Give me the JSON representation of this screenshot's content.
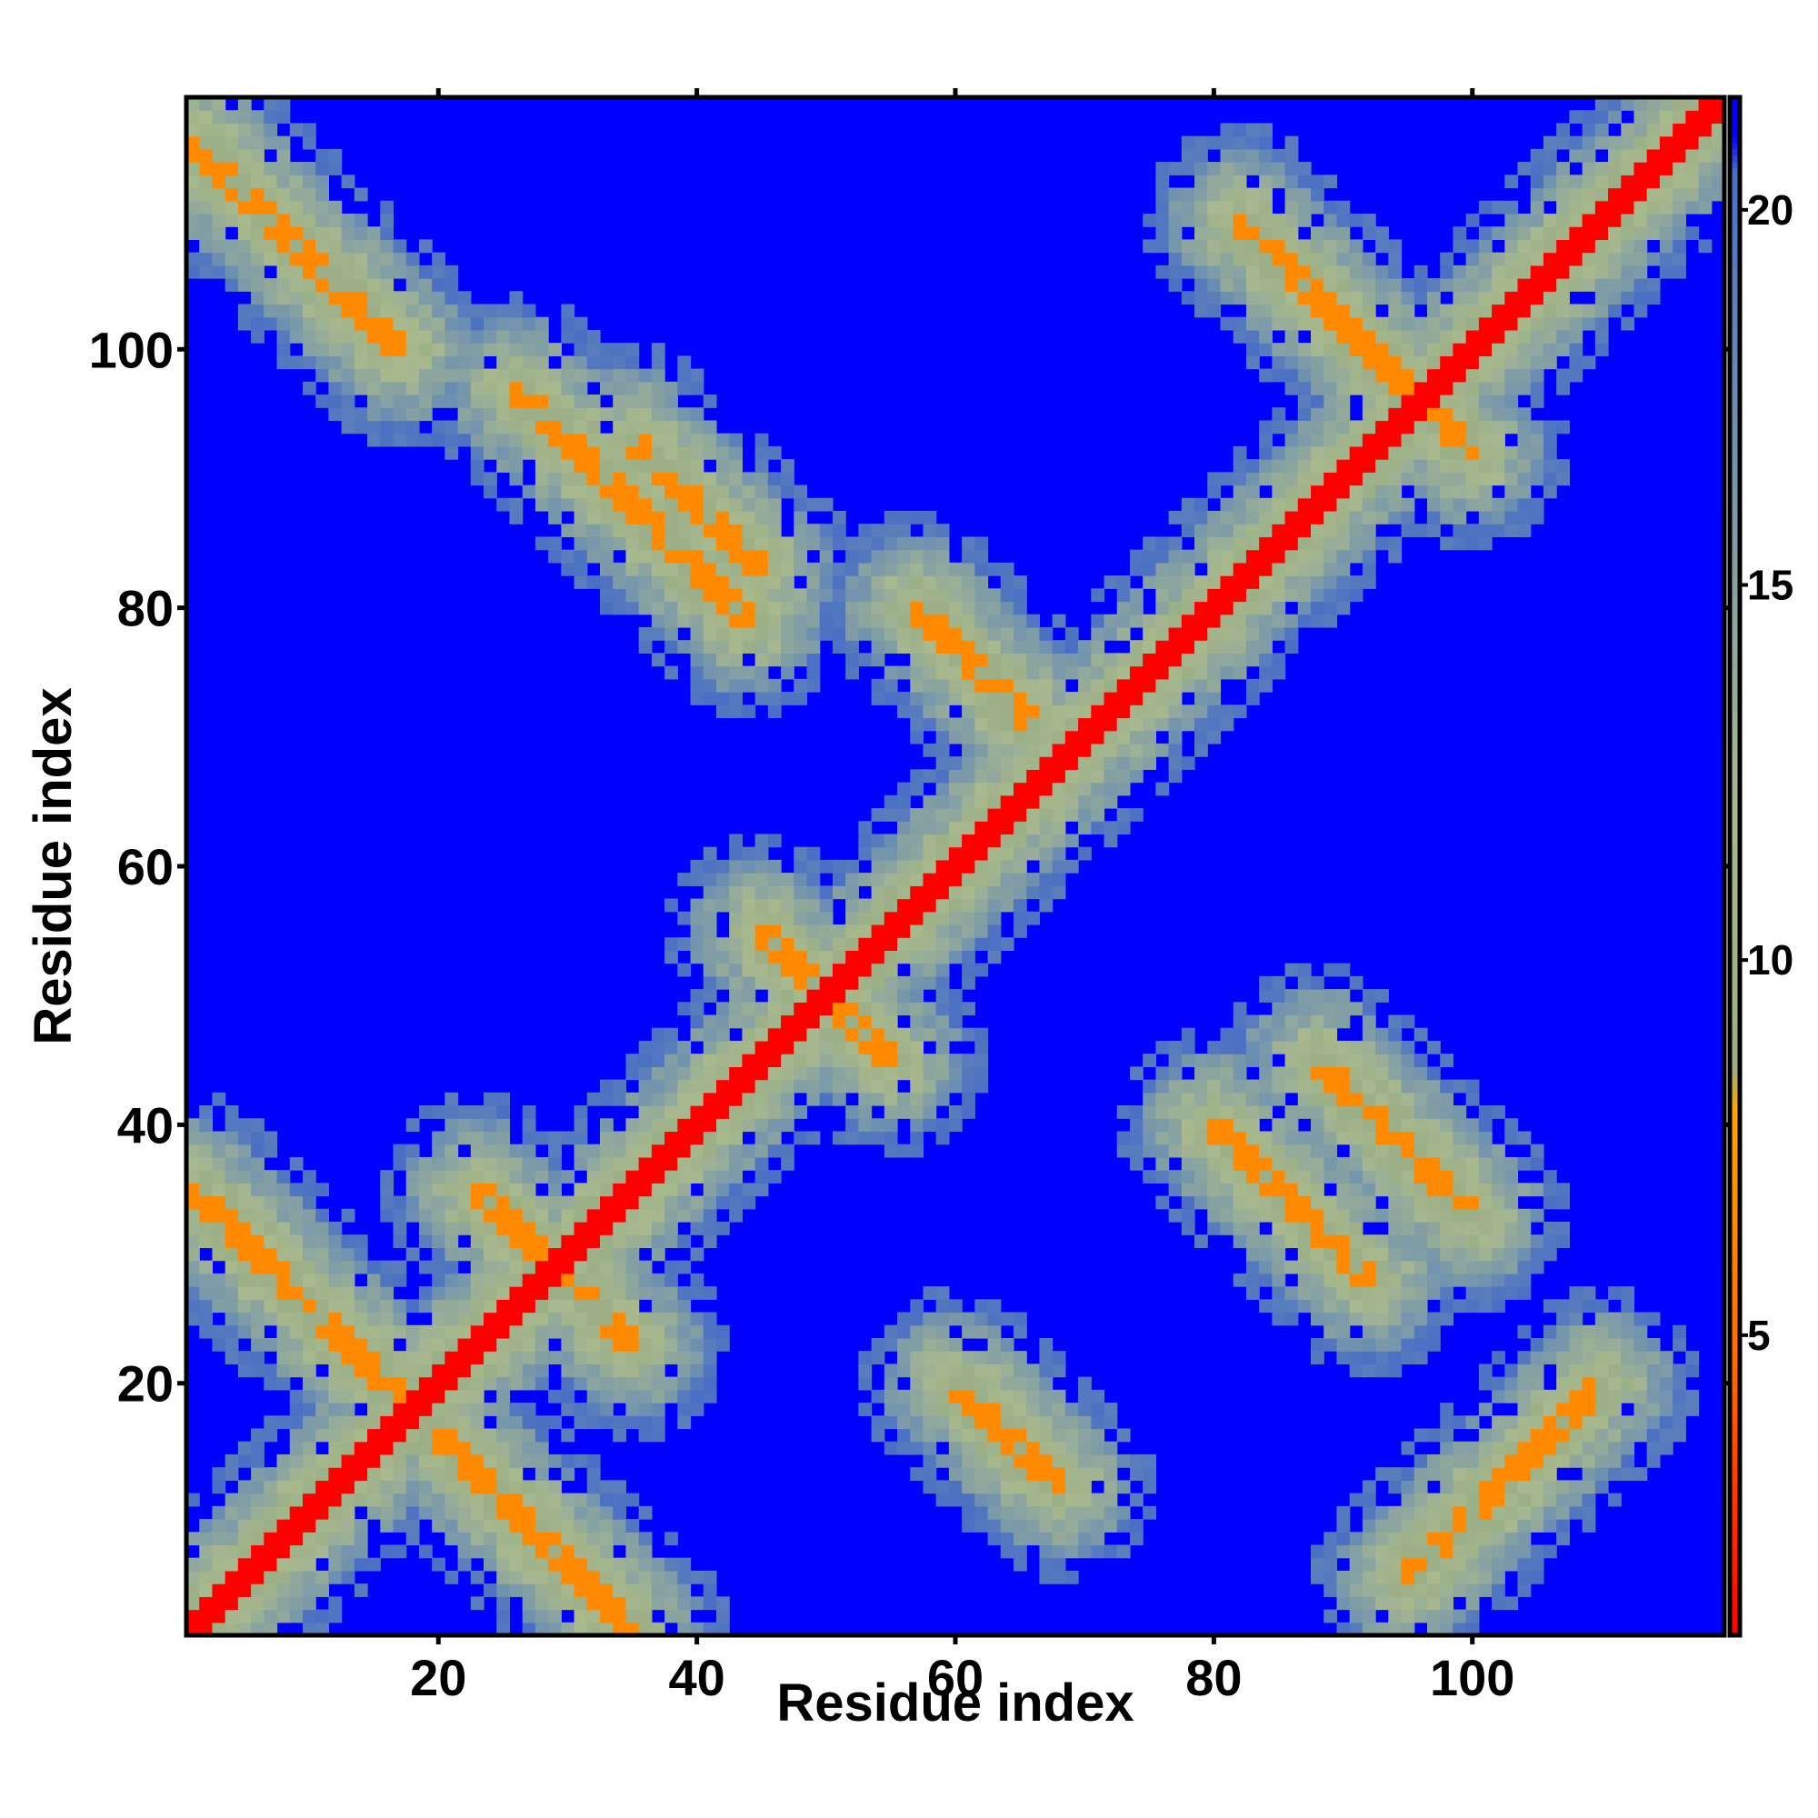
{
  "chart_data": {
    "type": "heatmap",
    "subtype": "residue distance map",
    "title": "",
    "xlabel": "Residue index",
    "ylabel": "Residue index",
    "n_residues": 119,
    "xlim": [
      1,
      119
    ],
    "ylim": [
      1,
      119
    ],
    "x_ticks": [
      20,
      40,
      60,
      80,
      100
    ],
    "y_ticks": [
      20,
      40,
      60,
      80,
      100
    ],
    "x_tick_labels": [
      "20",
      "40",
      "60",
      "80",
      "100"
    ],
    "y_tick_labels": [
      "20",
      "40",
      "60",
      "80",
      "100"
    ],
    "colorbar": {
      "range": [
        1,
        21.5
      ],
      "ticks": [
        5,
        10,
        15,
        20
      ],
      "tick_labels": [
        "5",
        "10",
        "15",
        "20"
      ],
      "stops": [
        {
          "value": 1,
          "color": "#ff0000"
        },
        {
          "value": 4.5,
          "color": "#ff6600"
        },
        {
          "value": 8,
          "color": "#ffa500"
        },
        {
          "value": 8.6,
          "color": "#9aae86"
        },
        {
          "value": 12,
          "color": "#a9b98e"
        },
        {
          "value": 17,
          "color": "#6f91b0"
        },
        {
          "value": 20.5,
          "color": "#4a6fc4"
        },
        {
          "value": 21,
          "color": "#0000ff"
        }
      ]
    },
    "structure": {
      "background_value": 21,
      "diagonal_value": 1,
      "hairpin_arms": [
        [
          [
            1,
            35
          ],
          [
            35,
            1
          ]
        ],
        [
          [
            1,
            116
          ],
          [
            17,
            100
          ]
        ],
        [
          [
            23,
            35
          ],
          [
            35,
            23
          ]
        ],
        [
          [
            26,
            97
          ],
          [
            44,
            79
          ]
        ],
        [
          [
            35,
            93
          ],
          [
            45,
            83
          ]
        ],
        [
          [
            45,
            55
          ],
          [
            55,
            45
          ]
        ],
        [
          [
            57,
            80
          ],
          [
            66,
            71
          ]
        ],
        [
          [
            60,
            20
          ],
          [
            68,
            12
          ]
        ],
        [
          [
            80,
            40
          ],
          [
            92,
            28
          ]
        ],
        [
          [
            82,
            110
          ],
          [
            100,
            92
          ]
        ],
        [
          [
            88,
            45
          ],
          [
            100,
            33
          ]
        ],
        [
          [
            95,
            5
          ],
          [
            110,
            20
          ]
        ]
      ]
    }
  }
}
